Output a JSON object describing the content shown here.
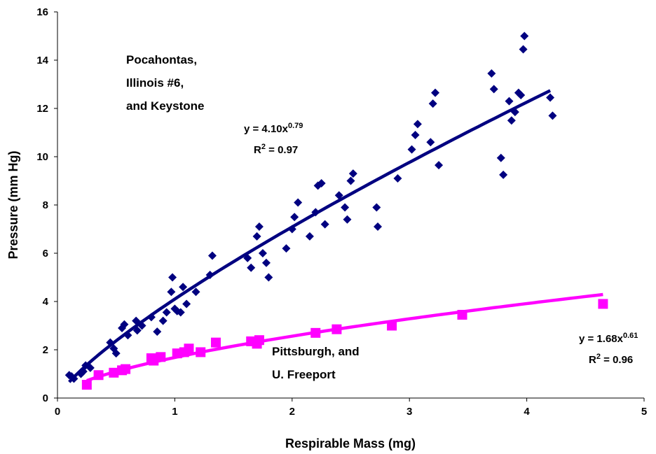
{
  "chart_data": {
    "type": "scatter",
    "title": "",
    "xlabel": "Respirable Mass (mg)",
    "ylabel": "Pressure (mm Hg)",
    "xlim": [
      0,
      5
    ],
    "ylim": [
      0,
      16
    ],
    "xticks": [
      "0",
      "1",
      "2",
      "3",
      "4",
      "5"
    ],
    "yticks": [
      "0",
      "2",
      "4",
      "6",
      "8",
      "10",
      "12",
      "14",
      "16"
    ],
    "grid": false,
    "series": [
      {
        "marker": "diamond",
        "color": "#000080",
        "points": [
          [
            0.1,
            0.95
          ],
          [
            0.12,
            0.9
          ],
          [
            0.14,
            0.8
          ],
          [
            0.2,
            1.0
          ],
          [
            0.22,
            1.1
          ],
          [
            0.24,
            1.35
          ],
          [
            0.28,
            1.25
          ],
          [
            0.45,
            2.3
          ],
          [
            0.48,
            2.05
          ],
          [
            0.5,
            1.85
          ],
          [
            0.55,
            2.9
          ],
          [
            0.57,
            3.05
          ],
          [
            0.6,
            2.6
          ],
          [
            0.67,
            3.2
          ],
          [
            0.68,
            2.8
          ],
          [
            0.72,
            3.0
          ],
          [
            0.8,
            3.35
          ],
          [
            0.85,
            2.75
          ],
          [
            0.9,
            3.2
          ],
          [
            0.93,
            3.55
          ],
          [
            0.97,
            4.4
          ],
          [
            0.98,
            5.0
          ],
          [
            1.0,
            3.7
          ],
          [
            1.02,
            3.6
          ],
          [
            1.05,
            3.55
          ],
          [
            1.07,
            4.6
          ],
          [
            1.1,
            3.9
          ],
          [
            1.18,
            4.4
          ],
          [
            1.3,
            5.1
          ],
          [
            1.32,
            5.9
          ],
          [
            1.62,
            5.8
          ],
          [
            1.65,
            5.4
          ],
          [
            1.7,
            6.7
          ],
          [
            1.72,
            7.1
          ],
          [
            1.75,
            6.0
          ],
          [
            1.78,
            5.6
          ],
          [
            1.8,
            5.0
          ],
          [
            1.95,
            6.2
          ],
          [
            2.0,
            7.0
          ],
          [
            2.02,
            7.5
          ],
          [
            2.05,
            8.1
          ],
          [
            2.15,
            6.7
          ],
          [
            2.2,
            7.7
          ],
          [
            2.22,
            8.8
          ],
          [
            2.25,
            8.9
          ],
          [
            2.28,
            7.2
          ],
          [
            2.4,
            8.4
          ],
          [
            2.45,
            7.9
          ],
          [
            2.47,
            7.4
          ],
          [
            2.5,
            9.0
          ],
          [
            2.52,
            9.3
          ],
          [
            2.72,
            7.9
          ],
          [
            2.73,
            7.1
          ],
          [
            2.9,
            9.1
          ],
          [
            3.02,
            10.3
          ],
          [
            3.05,
            10.9
          ],
          [
            3.07,
            11.35
          ],
          [
            3.18,
            10.6
          ],
          [
            3.2,
            12.2
          ],
          [
            3.22,
            12.65
          ],
          [
            3.25,
            9.65
          ],
          [
            3.7,
            13.45
          ],
          [
            3.72,
            12.8
          ],
          [
            3.78,
            9.95
          ],
          [
            3.8,
            9.25
          ],
          [
            3.85,
            12.3
          ],
          [
            3.87,
            11.5
          ],
          [
            3.9,
            11.85
          ],
          [
            3.93,
            12.65
          ],
          [
            3.95,
            12.55
          ],
          [
            3.97,
            14.45
          ],
          [
            3.98,
            15.0
          ],
          [
            4.2,
            12.45
          ],
          [
            4.22,
            11.7
          ]
        ],
        "trendline": {
          "a": 4.1,
          "b": 0.79,
          "x_start": 0.1,
          "x_end": 4.2
        },
        "equation": "y = 4.10x",
        "exponent": "0.79",
        "r2_prefix": "R",
        "r2_sup": "2",
        "r2_value": " = 0.97",
        "label_lines": [
          "Pocahontas,",
          "Illinois  #6,",
          "and Keystone"
        ]
      },
      {
        "marker": "square",
        "color": "#ff00ff",
        "points": [
          [
            0.25,
            0.55
          ],
          [
            0.35,
            0.95
          ],
          [
            0.48,
            1.05
          ],
          [
            0.55,
            1.15
          ],
          [
            0.58,
            1.2
          ],
          [
            0.8,
            1.65
          ],
          [
            0.82,
            1.55
          ],
          [
            0.88,
            1.7
          ],
          [
            1.02,
            1.85
          ],
          [
            1.08,
            1.9
          ],
          [
            1.12,
            2.05
          ],
          [
            1.22,
            1.9
          ],
          [
            1.35,
            2.3
          ],
          [
            1.65,
            2.35
          ],
          [
            1.7,
            2.25
          ],
          [
            1.72,
            2.4
          ],
          [
            2.2,
            2.7
          ],
          [
            2.38,
            2.85
          ],
          [
            2.85,
            3.0
          ],
          [
            3.45,
            3.45
          ],
          [
            4.65,
            3.9
          ]
        ],
        "trendline": {
          "a": 1.68,
          "b": 0.61,
          "x_start": 0.25,
          "x_end": 4.65
        },
        "equation": "y = 1.68x",
        "exponent": "0.61",
        "r2_prefix": "R",
        "r2_sup": "2",
        "r2_value": " = 0.96",
        "label_lines": [
          "Pittsburgh, and",
          "U. Freeport"
        ]
      }
    ]
  }
}
